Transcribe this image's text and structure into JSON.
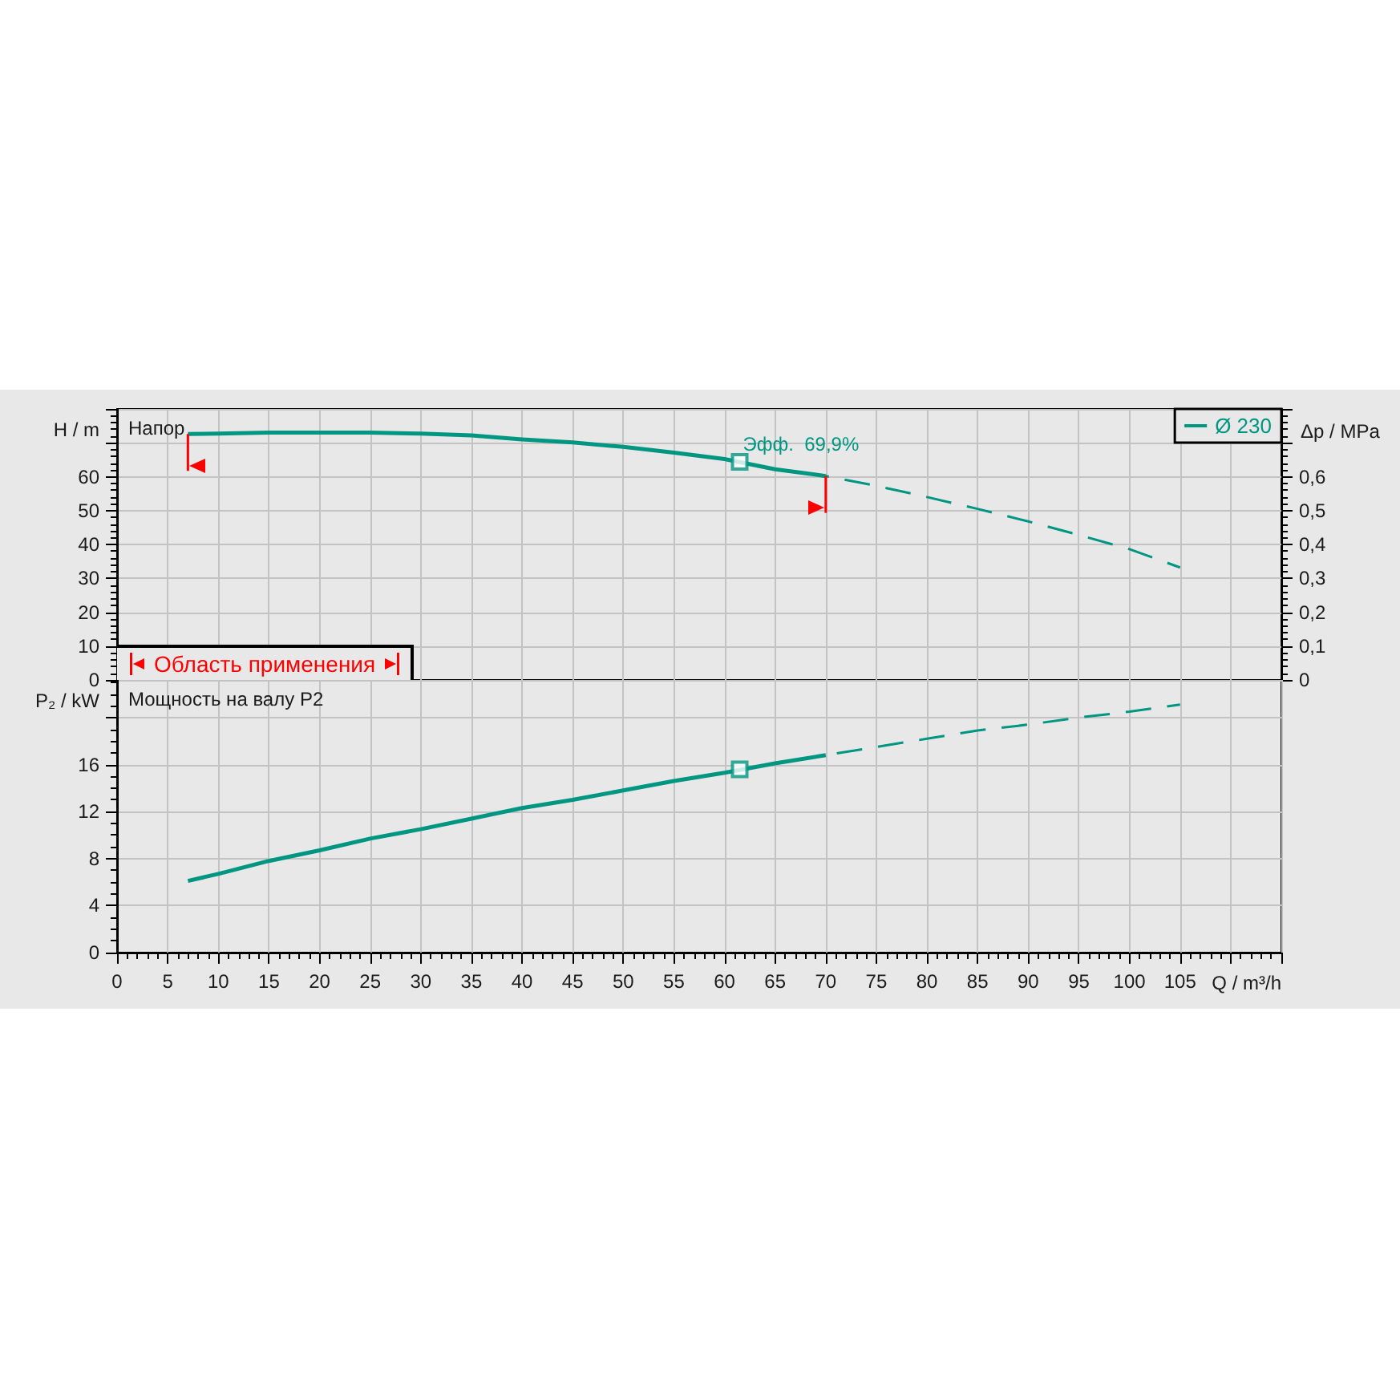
{
  "chart_data": [
    {
      "type": "line",
      "title": "Напор",
      "ylabel": "H / m",
      "y2label": "Δp / MPa",
      "annotations": [
        "Область применения",
        {
          "text": "Эфф.  69,9%",
          "x": 61.5,
          "y": 64.4
        }
      ],
      "series": [
        {
          "name": "Ø 230",
          "color": "#009682",
          "line_style": "solid",
          "x": [
            7,
            10,
            15,
            20,
            25,
            30,
            35,
            40,
            45,
            50,
            55,
            60,
            65,
            70
          ],
          "values": [
            72.6,
            72.7,
            73.0,
            73.0,
            73.0,
            72.7,
            72.2,
            71.0,
            70.1,
            68.8,
            67.1,
            65.2,
            62.2,
            60.2
          ]
        },
        {
          "color": "#009682",
          "line_style": "dashed",
          "x": [
            70,
            75,
            80,
            85,
            90,
            95,
            100,
            105
          ],
          "values": [
            60.2,
            57.3,
            54.0,
            50.5,
            46.8,
            42.8,
            38.6,
            33.2
          ]
        },
        {
          "type": "scatter",
          "color": "#009682",
          "marker": "square",
          "x": [
            61.5
          ],
          "values": [
            64.4
          ]
        }
      ],
      "xlim": [
        0,
        115
      ],
      "xticks": [
        0,
        5,
        10,
        15,
        20,
        25,
        30,
        35,
        40,
        45,
        50,
        55,
        60,
        65,
        70,
        75,
        80,
        85,
        90,
        95,
        100,
        105,
        {
          "value": 110,
          "label": null
        }
      ],
      "ylim": [
        0,
        80
      ],
      "yticks": [
        0,
        10,
        20,
        30,
        40,
        50,
        60,
        {
          "value": 70,
          "label": null
        }
      ],
      "y2lim": [
        0,
        0.8
      ],
      "y2ticks": [
        0,
        {
          "value": 0.1,
          "label": "0,1"
        },
        {
          "value": 0.2,
          "label": "0,2"
        },
        {
          "value": 0.3,
          "label": "0,3"
        },
        {
          "value": 0.4,
          "label": "0,4"
        },
        {
          "value": 0.5,
          "label": "0,5"
        },
        {
          "value": 0.6,
          "label": "0,6"
        },
        {
          "value": 0.7,
          "label": null
        }
      ],
      "ref_lines": [
        {
          "axis": "x",
          "value": 7,
          "color": "#ff0000"
        },
        {
          "axis": "x",
          "value": 70,
          "color": "#ff0000"
        }
      ],
      "grid": true,
      "legend": "top right",
      "tick_labels": "y",
      "marker": "none"
    },
    {
      "type": "line",
      "title": "Мощность на валу P2",
      "xlabel": "Q / m³/h",
      "ylabel": "P₂ / kW",
      "series": [
        {
          "color": "#009682",
          "line_style": "solid",
          "x": [
            7,
            10,
            15,
            20,
            25,
            30,
            35,
            40,
            45,
            50,
            55,
            60,
            65,
            70
          ],
          "values": [
            6.1,
            6.7,
            7.8,
            8.7,
            9.7,
            10.5,
            11.4,
            12.3,
            13.0,
            13.8,
            14.6,
            15.3,
            16.1,
            16.8
          ]
        },
        {
          "color": "#009682",
          "line_style": "dashed",
          "x": [
            70,
            75,
            80,
            85,
            90,
            95,
            100,
            105
          ],
          "values": [
            16.8,
            17.5,
            18.2,
            18.9,
            19.4,
            20.0,
            20.5,
            21.1
          ]
        },
        {
          "type": "scatter",
          "color": "#009682",
          "marker": "square",
          "x": [
            61.5
          ],
          "values": [
            15.6
          ]
        }
      ],
      "xlim": [
        0,
        115
      ],
      "xticks": [
        0,
        5,
        10,
        15,
        20,
        25,
        30,
        35,
        40,
        45,
        50,
        55,
        60,
        65,
        70,
        75,
        80,
        85,
        90,
        95,
        100,
        105,
        {
          "value": 110,
          "label": null
        }
      ],
      "ylim": [
        0,
        23.2
      ],
      "yticks": [
        0,
        4,
        8,
        12,
        16,
        {
          "value": 20,
          "label": null
        }
      ],
      "grid": true,
      "marker": "none"
    }
  ]
}
